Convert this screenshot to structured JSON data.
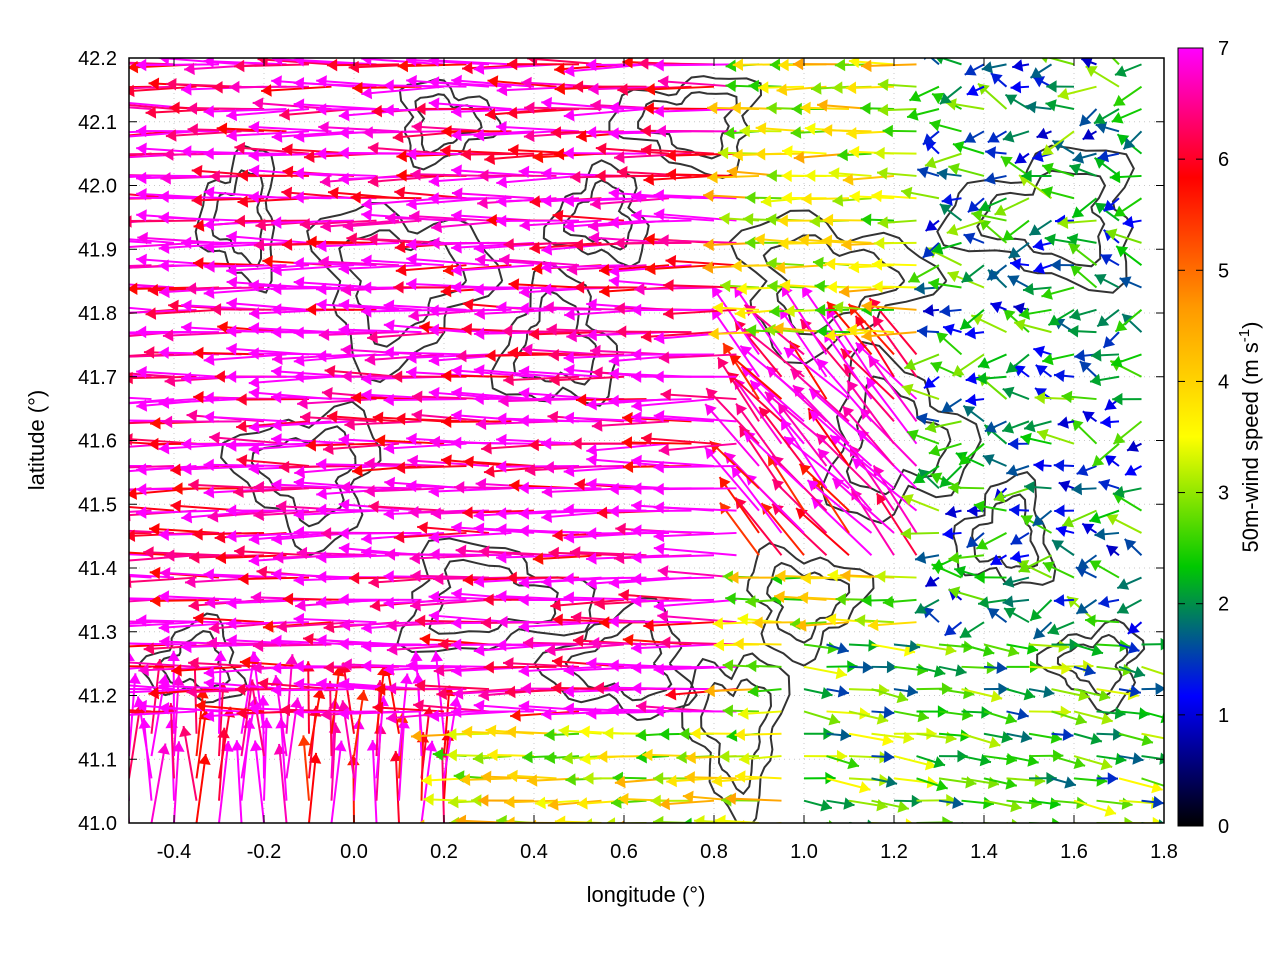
{
  "chart_data": {
    "type": "vector-field",
    "xlabel": "longitude (°)",
    "ylabel": "latitude (°)",
    "xlim": [
      -0.5,
      1.8
    ],
    "ylim": [
      41.0,
      42.2
    ],
    "xticks": [
      "-0.4",
      "-0.2",
      "0.0",
      "0.2",
      "0.4",
      "0.6",
      "0.8",
      "1.0",
      "1.2",
      "1.4",
      "1.6",
      "1.8"
    ],
    "yticks": [
      "41.0",
      "41.1",
      "41.2",
      "41.3",
      "41.4",
      "41.5",
      "41.6",
      "41.7",
      "41.8",
      "41.9",
      "42.0",
      "42.1",
      "42.2"
    ],
    "colorbar": {
      "label_main": "50m-wind speed (m s",
      "label_sup": "-1",
      "label_end": ")",
      "range": [
        0,
        7
      ],
      "ticks": [
        "0",
        "1",
        "2",
        "3",
        "4",
        "5",
        "6",
        "7"
      ],
      "colors": [
        "#000000",
        "#0000ff",
        "#00c800",
        "#ffff00",
        "#ff9900",
        "#ff0000",
        "#ff00ff"
      ]
    },
    "grid": "dotted",
    "contours": "terrain elevation (dark gray lines)",
    "wind_regions": [
      {
        "lon": [
          -0.5,
          0.9
        ],
        "lat": [
          41.15,
          42.2
        ],
        "speed": 6.8,
        "direction": "westward"
      },
      {
        "lon": [
          -0.5,
          0.2
        ],
        "lat": [
          41.0,
          41.25
        ],
        "speed": 6.5,
        "direction": "northward"
      },
      {
        "lon": [
          0.9,
          1.3
        ],
        "lat": [
          41.4,
          41.75
        ],
        "speed": 6.5,
        "direction": "north-westward"
      },
      {
        "lon": [
          1.0,
          1.8
        ],
        "lat": [
          41.0,
          41.3
        ],
        "speed": 2.5,
        "direction": "eastward"
      },
      {
        "lon": [
          1.3,
          1.8
        ],
        "lat": [
          41.3,
          42.2
        ],
        "speed": 2.0,
        "direction": "mixed"
      }
    ]
  }
}
